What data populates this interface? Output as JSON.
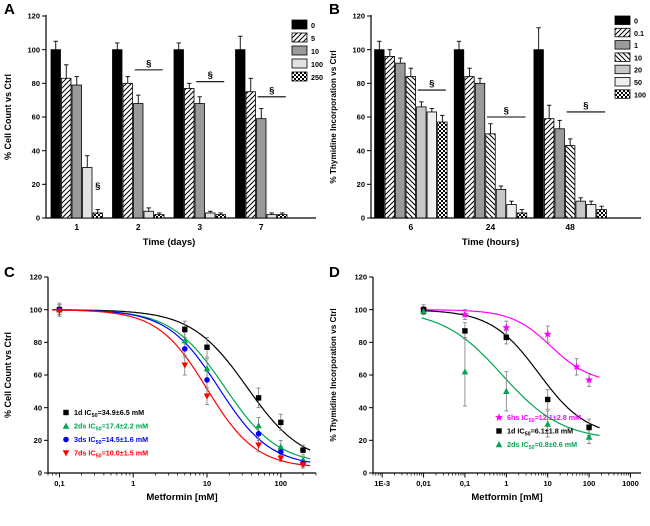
{
  "chart_data": [
    {
      "panel": "A",
      "type": "bar",
      "ylabel": "% Cell Count vs Ctrl",
      "xlabel": "Time (days)",
      "ylim": [
        0,
        120
      ],
      "yticks": [
        0,
        20,
        40,
        60,
        80,
        100,
        120
      ],
      "categories": [
        "1",
        "2",
        "3",
        "7"
      ],
      "groups_right": 292,
      "legend_pos": {
        "x": 292,
        "y": 20,
        "dy": 13,
        "sw": 15,
        "sh": 9,
        "fs": 7.2
      },
      "series": [
        {
          "name": "0",
          "style": "black",
          "values": [
            100,
            100,
            100,
            100
          ],
          "errors": [
            5,
            4,
            4,
            8
          ]
        },
        {
          "name": "5",
          "style": "hatchf",
          "values": [
            83,
            80,
            77,
            75
          ],
          "errors": [
            8,
            4,
            3,
            8
          ]
        },
        {
          "name": "10",
          "style": "gray",
          "values": [
            79,
            68,
            68,
            59
          ],
          "errors": [
            5,
            5,
            4,
            6
          ]
        },
        {
          "name": "100",
          "style": "light",
          "values": [
            30,
            4,
            3,
            2
          ],
          "errors": [
            7,
            2,
            1,
            1
          ]
        },
        {
          "name": "250",
          "style": "checker",
          "values": [
            3,
            2,
            2,
            2
          ],
          "errors": [
            2,
            1,
            1,
            1
          ]
        }
      ],
      "sig": [
        {
          "type": "text",
          "group": 0,
          "series": 4,
          "y": 16,
          "label": "§"
        },
        {
          "type": "bracket",
          "group": 1,
          "s1": 2,
          "s2": 4,
          "y": 88,
          "label": "§"
        },
        {
          "type": "bracket",
          "group": 2,
          "s1": 2,
          "s2": 4,
          "y": 81,
          "label": "§"
        },
        {
          "type": "bracket",
          "group": 3,
          "s1": 2,
          "s2": 4,
          "y": 72,
          "label": "§"
        }
      ]
    },
    {
      "panel": "B",
      "type": "bar",
      "ylabel": "% Thymidine Incorporation vs Ctrl",
      "xlabel": "Time (hours)",
      "ylim": [
        0,
        120
      ],
      "yticks": [
        0,
        20,
        40,
        60,
        80,
        100,
        120
      ],
      "categories": [
        "6",
        "24",
        "48"
      ],
      "groups_right": 285,
      "legend_pos": {
        "x": 290,
        "y": 16,
        "dy": 12.3,
        "sw": 15,
        "sh": 8.5,
        "fs": 7.2
      },
      "series": [
        {
          "name": "0",
          "style": "black",
          "values": [
            100,
            100,
            100
          ],
          "errors": [
            5,
            5,
            13
          ]
        },
        {
          "name": "0.1",
          "style": "hatchf",
          "values": [
            96,
            84,
            59
          ],
          "errors": [
            4,
            5,
            8
          ]
        },
        {
          "name": "1",
          "style": "gray",
          "values": [
            92,
            80,
            53
          ],
          "errors": [
            3,
            3,
            5
          ]
        },
        {
          "name": "10",
          "style": "hatchb",
          "values": [
            84,
            50,
            43
          ],
          "errors": [
            5,
            6,
            4
          ]
        },
        {
          "name": "20",
          "style": "lightgray",
          "values": [
            66,
            17,
            10
          ],
          "errors": [
            3,
            2,
            2
          ]
        },
        {
          "name": "50",
          "style": "nearwhite",
          "values": [
            63,
            8,
            8
          ],
          "errors": [
            2,
            2,
            2
          ]
        },
        {
          "name": "100",
          "style": "checker",
          "values": [
            57,
            3,
            5
          ],
          "errors": [
            4,
            2,
            2
          ]
        }
      ],
      "sig": [
        {
          "type": "bracket",
          "group": 0,
          "s1": 4,
          "s2": 6,
          "y": 76,
          "label": "§"
        },
        {
          "type": "bracket",
          "group": 1,
          "s1": 3,
          "s2": 6,
          "y": 60,
          "label": "§"
        },
        {
          "type": "bracket",
          "group": 2,
          "s1": 3,
          "s2": 6,
          "y": 63,
          "label": "§"
        }
      ]
    },
    {
      "panel": "C",
      "type": "scatter",
      "ylabel": "% Cell Count vs Ctrl",
      "xlabel": "Metformin [mM]",
      "ylim": [
        0,
        120
      ],
      "yticks": [
        0,
        20,
        40,
        60,
        80,
        100,
        120
      ],
      "xrange": [
        0.07,
        300
      ],
      "curve_range": [
        0.08,
        250
      ],
      "xticks": [
        {
          "v": 0.1,
          "label": "0,1"
        },
        {
          "v": 1,
          "label": "1"
        },
        {
          "v": 10,
          "label": "10"
        },
        {
          "v": 100,
          "label": "100"
        }
      ],
      "legend_pos": {
        "x": 66,
        "y": 152,
        "dy": 13.5
      },
      "series": [
        {
          "name": "1d",
          "color": "#000000",
          "symbol": "square",
          "fit": {
            "top": 100,
            "bottom": 5,
            "ic50": 34.9,
            "hill": 1.15
          },
          "x": [
            0.1,
            5,
            10,
            50,
            100,
            200
          ],
          "y": [
            100,
            88,
            77,
            46,
            31,
            14
          ],
          "err": [
            4,
            5,
            6,
            6,
            5,
            3
          ],
          "legend": {
            "pre": "1d IC",
            "sub": "50",
            "post": "=34.9±6.5 mM"
          }
        },
        {
          "name": "2ds",
          "color": "#00a651",
          "symbol": "triup",
          "fit": {
            "top": 100,
            "bottom": 5,
            "ic50": 17.4,
            "hill": 1.2
          },
          "x": [
            0.1,
            5,
            10,
            50,
            100,
            200
          ],
          "y": [
            100,
            81,
            64,
            29,
            16,
            8
          ],
          "err": [
            3,
            5,
            6,
            5,
            4,
            2
          ],
          "legend": {
            "pre": "2ds IC",
            "sub": "50",
            "post": "=17.4±2.2 mM"
          }
        },
        {
          "name": "3ds",
          "color": "#0000ff",
          "symbol": "circle",
          "fit": {
            "top": 100,
            "bottom": 4,
            "ic50": 14.5,
            "hill": 1.25
          },
          "x": [
            0.1,
            5,
            10,
            50,
            100,
            200
          ],
          "y": [
            100,
            76,
            57,
            24,
            13,
            6
          ],
          "err": [
            3,
            5,
            5,
            4,
            3,
            2
          ],
          "legend": {
            "pre": "3ds IC",
            "sub": "50",
            "post": "=14.5±1.6 mM"
          }
        },
        {
          "name": "7ds",
          "color": "#ff0000",
          "symbol": "tridown",
          "fit": {
            "top": 100,
            "bottom": 3,
            "ic50": 10.0,
            "hill": 1.3
          },
          "x": [
            0.1,
            5,
            10,
            50,
            100,
            200
          ],
          "y": [
            99,
            66,
            47,
            17,
            9,
            5
          ],
          "err": [
            3,
            6,
            5,
            4,
            2,
            2
          ],
          "legend": {
            "pre": "7ds IC",
            "sub": "50",
            "post": "=10.0±1.5 mM"
          }
        }
      ]
    },
    {
      "panel": "D",
      "type": "scatter",
      "ylabel": "% Thymidine Incorporation vs Ctrl",
      "xlabel": "Metformin [mM]",
      "ylim": [
        0,
        120
      ],
      "yticks": [
        0,
        20,
        40,
        60,
        80,
        100,
        120
      ],
      "xrange": [
        0.0006,
        1800
      ],
      "curve_range": [
        0.009,
        180
      ],
      "xticks": [
        {
          "v": 0.001,
          "label": "1E-3"
        },
        {
          "v": 0.01,
          "label": "0,01"
        },
        {
          "v": 0.1,
          "label": "0,1"
        },
        {
          "v": 1,
          "label": "1"
        },
        {
          "v": 10,
          "label": "10"
        },
        {
          "v": 100,
          "label": "100"
        },
        {
          "v": 1000,
          "label": "1000"
        }
      ],
      "legend_pos": {
        "x": 174,
        "y": 157,
        "dy": 13.5
      },
      "series": [
        {
          "name": "6hs",
          "color": "#ff00ff",
          "symbol": "star",
          "fit": {
            "top": 100,
            "bottom": 55,
            "ic50": 12.1,
            "hill": 0.9
          },
          "x": [
            0.01,
            0.1,
            1,
            10,
            50,
            100
          ],
          "y": [
            100,
            97,
            89,
            85,
            65,
            57
          ],
          "err": [
            3,
            3,
            4,
            5,
            5,
            4
          ],
          "legend": {
            "pre": "6hs IC",
            "sub": "50",
            "post": "=12.1±2.8 mM"
          }
        },
        {
          "name": "1d",
          "color": "#000000",
          "symbol": "square",
          "fit": {
            "top": 100,
            "bottom": 22,
            "ic50": 6.1,
            "hill": 0.75
          },
          "x": [
            0.01,
            0.1,
            1,
            10,
            100
          ],
          "y": [
            100,
            87,
            83,
            45,
            28
          ],
          "err": [
            2,
            5,
            4,
            6,
            5
          ],
          "legend": {
            "pre": "1d IC",
            "sub": "50",
            "post": "=6.1±1.8 mM"
          }
        },
        {
          "name": "2ds",
          "color": "#00a651",
          "symbol": "triup",
          "fit": {
            "top": 100,
            "bottom": 20,
            "ic50": 0.8,
            "hill": 0.6
          },
          "x": [
            0.01,
            0.1,
            1,
            10,
            100
          ],
          "y": [
            99,
            62,
            50,
            30,
            22
          ],
          "err": [
            2,
            21,
            12,
            8,
            4
          ],
          "legend": {
            "pre": "2ds IC",
            "sub": "50",
            "post": "=0.8±0.6 mM"
          }
        }
      ]
    }
  ]
}
